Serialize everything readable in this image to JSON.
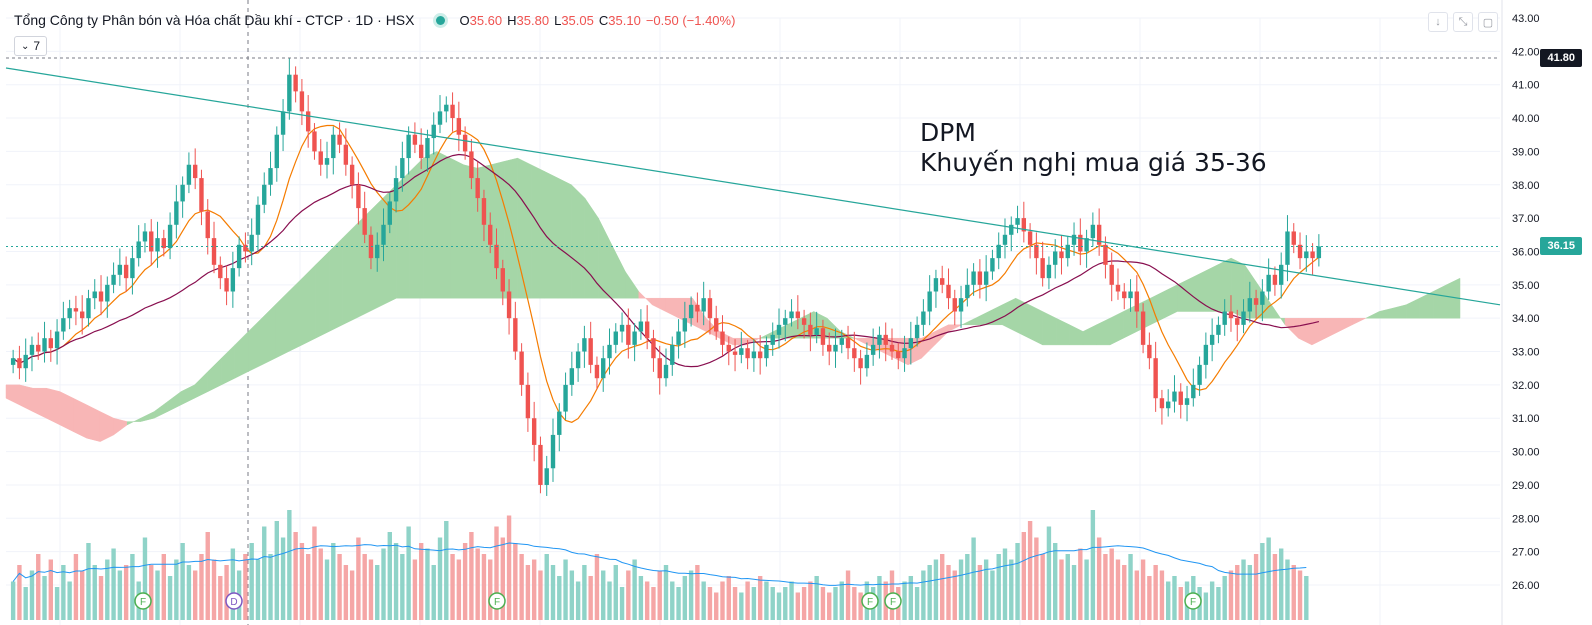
{
  "legend": {
    "title": "Tổng Công ty Phân bón và Hóa chất Dầu khí - CTCP · 1D · HSX",
    "open_label": "O",
    "open": "35.60",
    "high_label": "H",
    "high": "35.80",
    "low_label": "L",
    "low": "35.05",
    "close_label": "C",
    "close": "35.10",
    "change": "−0.50 (−1.40%)",
    "indicators_count": "7"
  },
  "annotation": {
    "line1": "DPM",
    "line2": "Khuyến nghị mua giá 35-36"
  },
  "price_badges": {
    "high_marker": "41.80",
    "last_price": "36.15"
  },
  "event_markers": [
    "F",
    "D",
    "F",
    "F",
    "F",
    "F"
  ],
  "icons": [
    "arrow-down-icon",
    "expand-icon",
    "fullscreen-icon",
    "chevron-down-icon"
  ],
  "colors": {
    "up": "#26a69a",
    "down": "#ef5350",
    "volume_up": "#8fd3c8",
    "volume_down": "#f5a6a6",
    "kumo_bull": "#a5d6a7",
    "kumo_bear": "#f8b6b6",
    "trendline": "#26a69a",
    "ma_fast": "#f57c00",
    "ma_slow": "#880e4f",
    "volume_ma": "#2196f3"
  },
  "chart_data": {
    "type": "candlestick",
    "symbol": "DPM",
    "y_axis": {
      "min": 26.0,
      "max": 43.0,
      "step": 1.0,
      "position": "right"
    },
    "y_ticks": [
      "43.00",
      "42.00",
      "41.00",
      "40.00",
      "39.00",
      "38.00",
      "37.00",
      "36.00",
      "35.00",
      "34.00",
      "33.00",
      "32.00",
      "31.00",
      "30.00",
      "29.00",
      "28.00",
      "27.00",
      "26.00"
    ],
    "trendline": {
      "start": 41.5,
      "end": 34.4
    },
    "horizontal_lines": {
      "high": 41.8,
      "last": 36.15
    },
    "close_series": [
      32.8,
      32.5,
      32.9,
      33.2,
      33.0,
      33.4,
      33.1,
      33.6,
      34.0,
      34.3,
      34.2,
      34.0,
      34.6,
      34.8,
      34.5,
      35.0,
      35.3,
      35.6,
      35.2,
      35.8,
      36.3,
      36.6,
      36.0,
      36.4,
      36.1,
      36.8,
      37.5,
      38.0,
      38.6,
      38.2,
      37.2,
      36.4,
      35.6,
      35.2,
      34.8,
      35.5,
      36.2,
      36.0,
      36.5,
      37.4,
      38.0,
      38.5,
      39.5,
      40.2,
      41.3,
      40.8,
      40.2,
      39.6,
      39.0,
      38.6,
      38.8,
      39.5,
      39.2,
      38.6,
      38.0,
      37.3,
      36.5,
      35.8,
      36.2,
      36.8,
      37.5,
      38.2,
      38.8,
      39.5,
      39.2,
      38.8,
      39.4,
      39.8,
      40.2,
      40.4,
      40.0,
      39.5,
      39.0,
      38.2,
      37.6,
      36.8,
      36.2,
      35.5,
      34.8,
      34.0,
      33.0,
      32.0,
      31.0,
      30.2,
      29.0,
      29.5,
      30.5,
      31.2,
      32.0,
      32.5,
      33.0,
      33.4,
      32.6,
      32.2,
      32.8,
      33.2,
      33.6,
      33.8,
      33.2,
      33.6,
      33.9,
      33.4,
      32.8,
      32.2,
      32.6,
      33.2,
      33.6,
      34.0,
      34.4,
      34.2,
      34.6,
      34.0,
      33.6,
      33.2,
      33.0,
      32.9,
      33.1,
      32.8,
      33.0,
      32.8,
      33.2,
      33.5,
      33.8,
      34.0,
      34.2,
      34.0,
      33.8,
      33.5,
      33.7,
      33.2,
      33.0,
      33.2,
      33.4,
      33.1,
      32.8,
      32.5,
      32.9,
      33.2,
      33.5,
      33.2,
      33.0,
      32.8,
      33.1,
      33.4,
      33.8,
      34.2,
      34.8,
      35.2,
      35.0,
      34.6,
      34.2,
      34.6,
      35.0,
      35.4,
      35.0,
      35.4,
      35.8,
      36.2,
      36.5,
      36.8,
      37.0,
      36.6,
      36.2,
      35.8,
      35.2,
      35.6,
      36.0,
      35.8,
      36.2,
      36.5,
      36.0,
      36.4,
      36.8,
      36.2,
      35.6,
      35.0,
      34.8,
      34.6,
      34.8,
      34.2,
      33.2,
      32.8,
      31.6,
      31.3,
      31.5,
      31.8,
      31.4,
      31.6,
      32.0,
      32.6,
      33.2,
      33.5,
      33.8,
      34.2,
      34.0,
      33.8,
      34.2,
      34.6,
      34.4,
      34.8,
      35.3,
      35.0,
      35.6,
      36.6,
      36.2,
      35.8,
      36.0,
      35.8,
      36.15
    ],
    "kumo_span_a": [
      31.6,
      31.4,
      31.2,
      31.0,
      30.8,
      30.6,
      30.4,
      30.3,
      30.5,
      30.8,
      31.0,
      31.2,
      31.5,
      31.8,
      32.0,
      32.4,
      32.8,
      33.2,
      33.6,
      34.0,
      34.4,
      34.8,
      35.2,
      35.6,
      36.0,
      36.4,
      36.8,
      37.2,
      37.6,
      38.0,
      38.4,
      38.8,
      39.0,
      38.8,
      38.6,
      38.5,
      38.6,
      38.7,
      38.8,
      38.6,
      38.4,
      38.2,
      38.0,
      37.6,
      37.0,
      36.2,
      35.4,
      34.8,
      34.4,
      34.2,
      34.0,
      33.8,
      33.6,
      33.4,
      33.2,
      33.2,
      33.4,
      33.6,
      33.8,
      34.0,
      34.2,
      34.0,
      33.6,
      33.4,
      33.2,
      33.0,
      32.8,
      32.6,
      32.8,
      33.2,
      33.6,
      33.8,
      34.0,
      34.2,
      34.4,
      34.6,
      34.4,
      34.2,
      34.0,
      33.8,
      33.6,
      33.8,
      34.0,
      34.2,
      34.4,
      34.6,
      34.8,
      35.0,
      35.2,
      35.4,
      35.6,
      35.8,
      35.6,
      35.0,
      34.4,
      33.8,
      33.4,
      33.2,
      33.4,
      33.6,
      33.8,
      34.0,
      34.2,
      34.3,
      34.4,
      34.6,
      34.8,
      35.0,
      35.2
    ],
    "kumo_span_b": [
      32.0,
      32.0,
      31.9,
      31.9,
      31.8,
      31.6,
      31.4,
      31.2,
      31.0,
      30.9,
      30.9,
      31.0,
      31.2,
      31.4,
      31.6,
      31.8,
      32.0,
      32.2,
      32.4,
      32.6,
      32.8,
      33.0,
      33.2,
      33.4,
      33.6,
      33.8,
      34.0,
      34.2,
      34.4,
      34.6,
      34.6,
      34.6,
      34.6,
      34.6,
      34.6,
      34.6,
      34.6,
      34.6,
      34.6,
      34.6,
      34.6,
      34.6,
      34.6,
      34.6,
      34.6,
      34.6,
      34.6,
      34.6,
      34.6,
      34.6,
      34.6,
      34.6,
      34.0,
      33.6,
      33.4,
      33.4,
      33.4,
      33.4,
      33.4,
      33.4,
      33.4,
      33.4,
      33.4,
      33.4,
      33.4,
      33.4,
      33.4,
      33.4,
      33.4,
      33.6,
      33.8,
      33.8,
      33.8,
      33.8,
      33.8,
      33.6,
      33.4,
      33.2,
      33.2,
      33.2,
      33.2,
      33.2,
      33.2,
      33.4,
      33.6,
      33.8,
      34.0,
      34.2,
      34.2,
      34.2,
      34.2,
      34.2,
      34.0,
      34.0,
      34.0,
      34.0,
      34.0,
      34.0,
      34.0,
      34.0,
      34.0,
      34.0,
      34.0,
      34.0,
      34.0,
      34.0,
      34.0,
      34.0,
      34.0
    ],
    "volume_series": [
      0.35,
      0.5,
      0.3,
      0.45,
      0.6,
      0.4,
      0.55,
      0.3,
      0.5,
      0.35,
      0.6,
      0.45,
      0.7,
      0.5,
      0.4,
      0.55,
      0.65,
      0.45,
      0.5,
      0.6,
      0.35,
      0.75,
      0.5,
      0.45,
      0.6,
      0.4,
      0.55,
      0.7,
      0.5,
      0.45,
      0.6,
      0.8,
      0.55,
      0.4,
      0.5,
      0.65,
      0.45,
      0.6,
      0.7,
      0.55,
      0.85,
      0.6,
      0.9,
      0.75,
      1.0,
      0.8,
      0.7,
      0.6,
      0.85,
      0.65,
      0.55,
      0.7,
      0.6,
      0.5,
      0.45,
      0.75,
      0.6,
      0.55,
      0.5,
      0.65,
      0.8,
      0.7,
      0.6,
      0.85,
      0.55,
      0.7,
      0.65,
      0.5,
      0.75,
      0.9,
      0.6,
      0.55,
      0.7,
      0.8,
      0.65,
      0.6,
      0.55,
      0.85,
      0.75,
      0.95,
      0.7,
      0.6,
      0.5,
      0.55,
      0.45,
      0.6,
      0.5,
      0.4,
      0.55,
      0.45,
      0.35,
      0.5,
      0.4,
      0.6,
      0.45,
      0.35,
      0.5,
      0.3,
      0.45,
      0.55,
      0.4,
      0.35,
      0.3,
      0.45,
      0.5,
      0.35,
      0.3,
      0.4,
      0.45,
      0.5,
      0.35,
      0.3,
      0.25,
      0.35,
      0.4,
      0.3,
      0.25,
      0.35,
      0.3,
      0.4,
      0.35,
      0.3,
      0.25,
      0.3,
      0.35,
      0.25,
      0.3,
      0.35,
      0.4,
      0.3,
      0.25,
      0.3,
      0.35,
      0.45,
      0.3,
      0.25,
      0.35,
      0.3,
      0.4,
      0.35,
      0.45,
      0.3,
      0.35,
      0.4,
      0.3,
      0.45,
      0.5,
      0.55,
      0.6,
      0.5,
      0.45,
      0.55,
      0.6,
      0.75,
      0.5,
      0.55,
      0.45,
      0.6,
      0.65,
      0.55,
      0.7,
      0.8,
      0.9,
      0.75,
      0.6,
      0.85,
      0.7,
      0.55,
      0.6,
      0.5,
      0.65,
      0.55,
      1.0,
      0.75,
      0.6,
      0.65,
      0.55,
      0.5,
      0.6,
      0.45,
      0.55,
      0.4,
      0.5,
      0.45,
      0.35,
      0.4,
      0.3,
      0.35,
      0.4,
      0.3,
      0.25,
      0.35,
      0.3,
      0.4,
      0.45,
      0.5,
      0.55,
      0.5,
      0.6,
      0.7,
      0.75,
      0.6,
      0.65,
      0.55,
      0.5,
      0.45,
      0.4
    ]
  }
}
